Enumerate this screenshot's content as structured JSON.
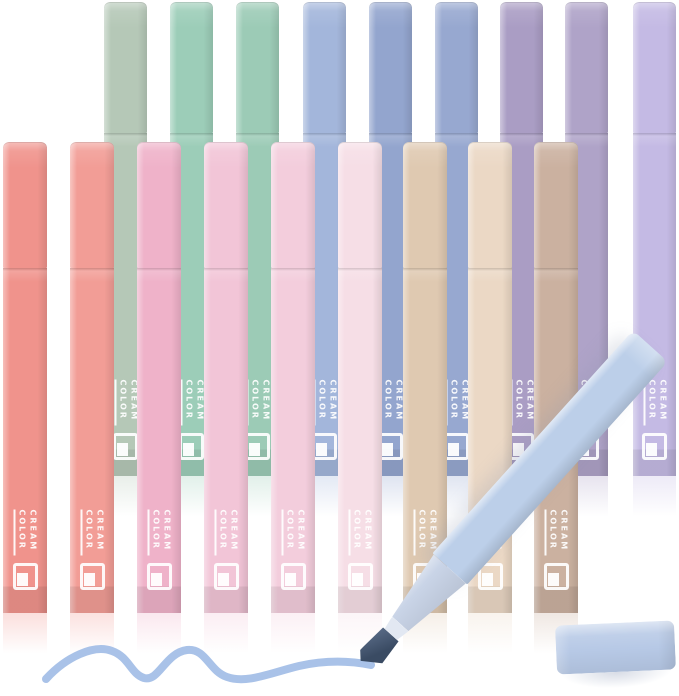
{
  "label": {
    "line1": "CREAM",
    "line2": "COLOR"
  },
  "pens": {
    "back_row": [
      {
        "name": "sage-green",
        "color": "#B5C8B7"
      },
      {
        "name": "mint-green",
        "color": "#9CCDB8"
      },
      {
        "name": "green",
        "color": "#9CCBB6"
      },
      {
        "name": "light-blue",
        "color": "#A3B6DB"
      },
      {
        "name": "periwinkle-blue",
        "color": "#93A5CE"
      },
      {
        "name": "dusty-blue",
        "color": "#97A8D0"
      },
      {
        "name": "mauve-purple",
        "color": "#AA9DC4"
      },
      {
        "name": "purple",
        "color": "#AFA3C8"
      },
      {
        "name": "lavender",
        "color": "#C4BAE4"
      }
    ],
    "front_row": [
      {
        "name": "coral",
        "color": "#F0938C"
      },
      {
        "name": "salmon-pink",
        "color": "#F29D96"
      },
      {
        "name": "rose-pink",
        "color": "#EFB2C9"
      },
      {
        "name": "pink",
        "color": "#F2C5D7"
      },
      {
        "name": "light-pink",
        "color": "#F3CDDC"
      },
      {
        "name": "blush-pink",
        "color": "#F6DEE6"
      },
      {
        "name": "tan",
        "color": "#DFC9B1"
      },
      {
        "name": "beige",
        "color": "#EBD8C5"
      },
      {
        "name": "taupe-brown",
        "color": "#CBB1A0"
      }
    ],
    "uncapped_pen": {
      "name": "sky-blue",
      "barrel_color": "#BCCFE9",
      "grip_color": "#C9D4E7",
      "ferrule_color": "#E2E8F2",
      "tip_color": "#3A4B63",
      "tip_highlight": "#5A6C88"
    },
    "floor_cap_color": "#B7C9E6",
    "ink_stroke_color": "#A9C2E8"
  }
}
